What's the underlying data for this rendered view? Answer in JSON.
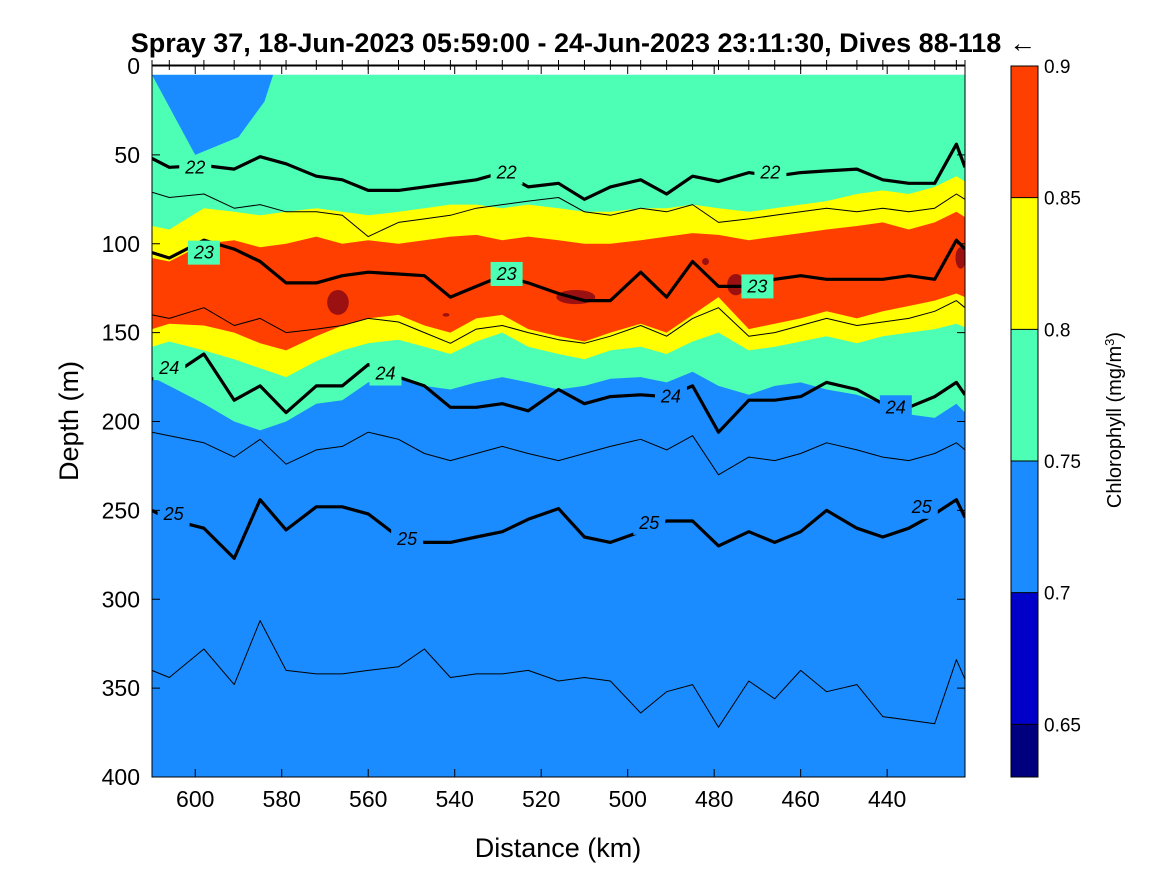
{
  "chart_data": {
    "type": "contour",
    "title": "Spray 37, 18-Jun-2023 05:59:00 - 24-Jun-2023 23:11:30, Dives 88-118",
    "title_arrow": "←",
    "xlabel": "Distance (km)",
    "ylabel": "Depth (m)",
    "xlim": [
      610,
      422
    ],
    "x_reversed": true,
    "ylim": [
      0,
      400
    ],
    "y_reversed": true,
    "xticks": [
      600,
      580,
      560,
      540,
      520,
      500,
      480,
      460,
      440
    ],
    "yticks": [
      0,
      50,
      100,
      150,
      200,
      250,
      300,
      350,
      400
    ],
    "colorbar": {
      "label": "Chlorophyll",
      "units": "(mg/m",
      "units_exp": "3",
      "units_close": ")",
      "levels": [
        0.63,
        0.65,
        0.7,
        0.75,
        0.8,
        0.85,
        0.9
      ],
      "ticks": [
        0.65,
        0.7,
        0.75,
        0.8,
        0.85,
        0.9
      ],
      "colors": [
        "#00007f",
        "#0000c8",
        "#1a8cff",
        "#4dffb4",
        "#ffff00",
        "#ff3f00"
      ]
    },
    "filled_bands": {
      "x": [
        610,
        606,
        598,
        591,
        585,
        579,
        572,
        566,
        560,
        553,
        547,
        541,
        535,
        529,
        523,
        516,
        510,
        504,
        497,
        491,
        485,
        479,
        472,
        466,
        460,
        454,
        447,
        441,
        435,
        429,
        424,
        422
      ],
      "high_0.85": [
        128,
        124,
        122,
        130,
        132,
        138,
        124,
        116,
        112,
        110,
        116,
        122,
        115,
        112,
        116,
        122,
        124,
        120,
        116,
        118,
        112,
        106,
        120,
        118,
        114,
        110,
        112,
        108,
        106,
        104,
        98,
        100
      ],
      "high_0.8": [
        148,
        145,
        146,
        150,
        156,
        160,
        152,
        146,
        142,
        140,
        146,
        150,
        142,
        140,
        148,
        152,
        155,
        150,
        145,
        150,
        140,
        130,
        148,
        145,
        142,
        138,
        142,
        138,
        135,
        132,
        128,
        130
      ],
      "high_0.75": [
        158,
        155,
        160,
        165,
        170,
        175,
        166,
        160,
        156,
        154,
        158,
        162,
        155,
        150,
        158,
        162,
        165,
        160,
        158,
        162,
        155,
        150,
        160,
        158,
        155,
        152,
        156,
        152,
        150,
        148,
        145,
        147
      ],
      "low_0.85": [
        108,
        110,
        100,
        98,
        102,
        100,
        96,
        100,
        98,
        100,
        98,
        96,
        95,
        98,
        96,
        98,
        100,
        100,
        98,
        96,
        94,
        95,
        98,
        96,
        94,
        92,
        90,
        88,
        92,
        88,
        82,
        85
      ],
      "low_0.8": [
        90,
        92,
        80,
        82,
        84,
        82,
        80,
        82,
        84,
        82,
        80,
        78,
        78,
        80,
        78,
        80,
        82,
        82,
        80,
        80,
        78,
        80,
        82,
        80,
        78,
        76,
        72,
        70,
        72,
        68,
        62,
        65
      ],
      "bottom_0.75": [
        175,
        180,
        190,
        200,
        205,
        200,
        190,
        188,
        178,
        175,
        180,
        182,
        178,
        175,
        178,
        182,
        180,
        176,
        175,
        178,
        172,
        180,
        185,
        180,
        178,
        182,
        185,
        190,
        196,
        198,
        190,
        195
      ]
    },
    "contour_lines": [
      {
        "level": 22,
        "bold": true,
        "y": [
          52,
          57,
          56,
          58,
          51,
          55,
          62,
          64,
          70,
          70,
          68,
          66,
          64,
          60,
          68,
          66,
          75,
          68,
          64,
          72,
          62,
          65,
          60,
          62,
          60,
          59,
          58,
          64,
          66,
          66,
          44,
          57
        ]
      },
      {
        "level": 23,
        "bold": true,
        "y": [
          105,
          108,
          98,
          103,
          110,
          122,
          122,
          118,
          116,
          117,
          118,
          130,
          124,
          118,
          122,
          128,
          132,
          132,
          116,
          130,
          110,
          124,
          124,
          120,
          118,
          120,
          120,
          120,
          118,
          120,
          98,
          103
        ]
      },
      {
        "level": 24,
        "bold": true,
        "y": [
          176,
          175,
          162,
          188,
          180,
          195,
          180,
          180,
          168,
          175,
          180,
          192,
          192,
          190,
          194,
          182,
          190,
          186,
          185,
          186,
          180,
          206,
          188,
          188,
          186,
          178,
          182,
          190,
          192,
          186,
          178,
          185
        ]
      },
      {
        "level": 25,
        "bold": true,
        "y": [
          250,
          255,
          260,
          277,
          244,
          261,
          248,
          248,
          252,
          265,
          268,
          268,
          265,
          262,
          255,
          249,
          265,
          268,
          262,
          256,
          256,
          270,
          262,
          268,
          262,
          250,
          260,
          265,
          260,
          252,
          244,
          254
        ]
      },
      {
        "level": null,
        "bold": false,
        "y": [
          71,
          74,
          72,
          80,
          78,
          82,
          82,
          84,
          96,
          88,
          86,
          84,
          80,
          78,
          76,
          74,
          82,
          84,
          80,
          82,
          78,
          88,
          86,
          84,
          82,
          80,
          82,
          80,
          82,
          80,
          72,
          75
        ]
      },
      {
        "level": null,
        "bold": false,
        "y": [
          140,
          142,
          136,
          146,
          142,
          150,
          148,
          146,
          142,
          144,
          150,
          156,
          148,
          146,
          150,
          154,
          156,
          152,
          146,
          152,
          142,
          136,
          152,
          150,
          146,
          142,
          146,
          144,
          142,
          138,
          132,
          136
        ]
      },
      {
        "level": null,
        "bold": false,
        "y": [
          206,
          208,
          212,
          220,
          210,
          224,
          216,
          214,
          206,
          210,
          218,
          222,
          218,
          214,
          218,
          222,
          218,
          214,
          210,
          216,
          208,
          230,
          220,
          222,
          218,
          212,
          216,
          220,
          222,
          218,
          212,
          216
        ]
      },
      {
        "level": null,
        "bold": false,
        "y": [
          340,
          344,
          328,
          348,
          312,
          340,
          342,
          342,
          340,
          338,
          328,
          344,
          342,
          342,
          340,
          346,
          344,
          346,
          364,
          352,
          348,
          372,
          346,
          356,
          340,
          352,
          348,
          366,
          368,
          370,
          334,
          345
        ]
      }
    ],
    "dark_spots": [
      {
        "x": 567,
        "y": 133,
        "rx": 2.5,
        "ry": 7
      },
      {
        "x": 512,
        "y": 130,
        "rx": 4.5,
        "ry": 4
      },
      {
        "x": 475,
        "y": 123,
        "rx": 2,
        "ry": 6
      },
      {
        "x": 423,
        "y": 108,
        "rx": 1.2,
        "ry": 6
      },
      {
        "x": 542,
        "y": 140,
        "rx": 0.8,
        "ry": 1
      },
      {
        "x": 482,
        "y": 110,
        "rx": 0.8,
        "ry": 2
      }
    ],
    "surface_blue_patch": {
      "x": [
        610,
        600,
        590,
        584,
        582,
        588
      ],
      "y": [
        5,
        50,
        40,
        20,
        5,
        5
      ]
    },
    "contour_label_positions": [
      {
        "text": "22",
        "x": 600,
        "y": 57
      },
      {
        "text": "22",
        "x": 528,
        "y": 60
      },
      {
        "text": "22",
        "x": 467,
        "y": 60
      },
      {
        "text": "23",
        "x": 598,
        "y": 105
      },
      {
        "text": "23",
        "x": 528,
        "y": 117
      },
      {
        "text": "23",
        "x": 470,
        "y": 124
      },
      {
        "text": "24",
        "x": 606,
        "y": 170
      },
      {
        "text": "24",
        "x": 556,
        "y": 173
      },
      {
        "text": "24",
        "x": 490,
        "y": 186
      },
      {
        "text": "24",
        "x": 438,
        "y": 192
      },
      {
        "text": "25",
        "x": 605,
        "y": 252
      },
      {
        "text": "25",
        "x": 551,
        "y": 266
      },
      {
        "text": "25",
        "x": 495,
        "y": 257
      },
      {
        "text": "25",
        "x": 432,
        "y": 248
      }
    ],
    "grid": false,
    "legend": "colorbar-right"
  }
}
